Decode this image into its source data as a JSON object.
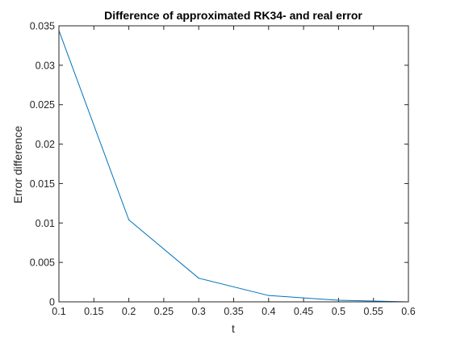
{
  "chart_data": {
    "type": "line",
    "title": "Difference of approximated RK34- and real error",
    "xlabel": "t",
    "ylabel": "Error difference",
    "xlim": [
      0.1,
      0.6
    ],
    "ylim": [
      0,
      0.035
    ],
    "xticks": [
      "0.1",
      "0.15",
      "0.2",
      "0.25",
      "0.3",
      "0.35",
      "0.4",
      "0.45",
      "0.5",
      "0.55",
      "0.6"
    ],
    "yticks": [
      "0",
      "0.005",
      "0.01",
      "0.015",
      "0.02",
      "0.025",
      "0.03",
      "0.035"
    ],
    "grid": false,
    "series": [
      {
        "name": "Error difference",
        "color": "#0072BD",
        "x": [
          0.1,
          0.2,
          0.3,
          0.4,
          0.5,
          0.6
        ],
        "y": [
          0.0344,
          0.0104,
          0.003,
          0.0008,
          0.0002,
          0.0
        ]
      }
    ]
  }
}
